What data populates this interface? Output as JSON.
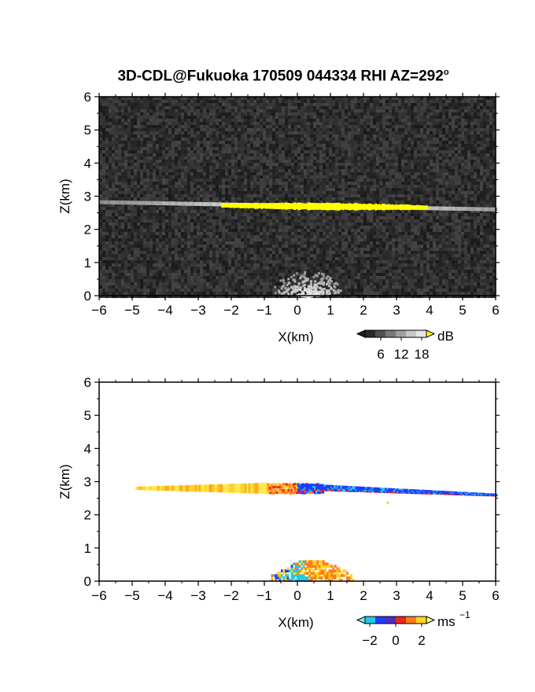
{
  "title": {
    "main": "3D-CDL@Fukuoka 170509 044334 RHI AZ=292",
    "degree_mark": "o"
  },
  "chart_data": [
    {
      "type": "heatmap",
      "panel": "top",
      "quantity_unit": "dB",
      "xlabel": "X(km)",
      "ylabel": "Z(km)",
      "xlim": [
        -6,
        6
      ],
      "ylim": [
        0,
        6
      ],
      "x_ticks": [
        -6,
        -5,
        -4,
        -3,
        -2,
        -1,
        0,
        1,
        2,
        3,
        4,
        5,
        6
      ],
      "y_ticks": [
        0,
        1,
        2,
        3,
        4,
        5,
        6
      ],
      "background": "noise",
      "colorbar": {
        "unit": "dB",
        "ticks": [
          6,
          12,
          18
        ]
      },
      "features": [
        {
          "name": "layer",
          "x_range": [
            -6,
            6
          ],
          "z_start": 2.82,
          "z_end": 2.6,
          "thickness": 0.12
        },
        {
          "name": "layer-core",
          "x_range": [
            -2.3,
            3.9
          ],
          "z_start": 2.72,
          "z_end": 2.66,
          "thickness": 0.22
        },
        {
          "name": "near-ground",
          "x_center": 0.3,
          "z_range": [
            0,
            0.75
          ]
        }
      ]
    },
    {
      "type": "heatmap",
      "panel": "bottom",
      "quantity_unit": "ms",
      "quantity_unit_exponent": "−1",
      "xlabel": "X(km)",
      "ylabel": "Z(km)",
      "xlim": [
        -6,
        6
      ],
      "ylim": [
        0,
        6
      ],
      "x_ticks": [
        -6,
        -5,
        -4,
        -3,
        -2,
        -1,
        0,
        1,
        2,
        3,
        4,
        5,
        6
      ],
      "y_ticks": [
        0,
        1,
        2,
        3,
        4,
        5,
        6
      ],
      "colorbar": {
        "unit": "ms",
        "ticks": [
          "−2",
          "0",
          "2"
        ]
      },
      "features": [
        {
          "name": "layer-positive",
          "x_range": [
            -4.9,
            -0.9
          ],
          "z": 2.8,
          "velocity": 2
        },
        {
          "name": "layer-mixed",
          "x_range": [
            -0.9,
            0.8
          ],
          "z": 2.8,
          "velocity": 0
        },
        {
          "name": "layer-negative",
          "x_range": [
            0.0,
            6.0
          ],
          "z_start": 2.85,
          "z_end": 2.6,
          "velocity": -2
        },
        {
          "name": "near-ground",
          "x_range": [
            -0.8,
            1.7
          ],
          "z_range": [
            0,
            0.6
          ]
        }
      ]
    }
  ],
  "colors": {
    "gray_low": "#2a2a2a",
    "reflect_high": "#ffff00",
    "vel_neg": "#1f3cff",
    "vel_cyan": "#22c8e8",
    "vel_zero": "#e8281e",
    "vel_pos": "#ffd21e"
  }
}
